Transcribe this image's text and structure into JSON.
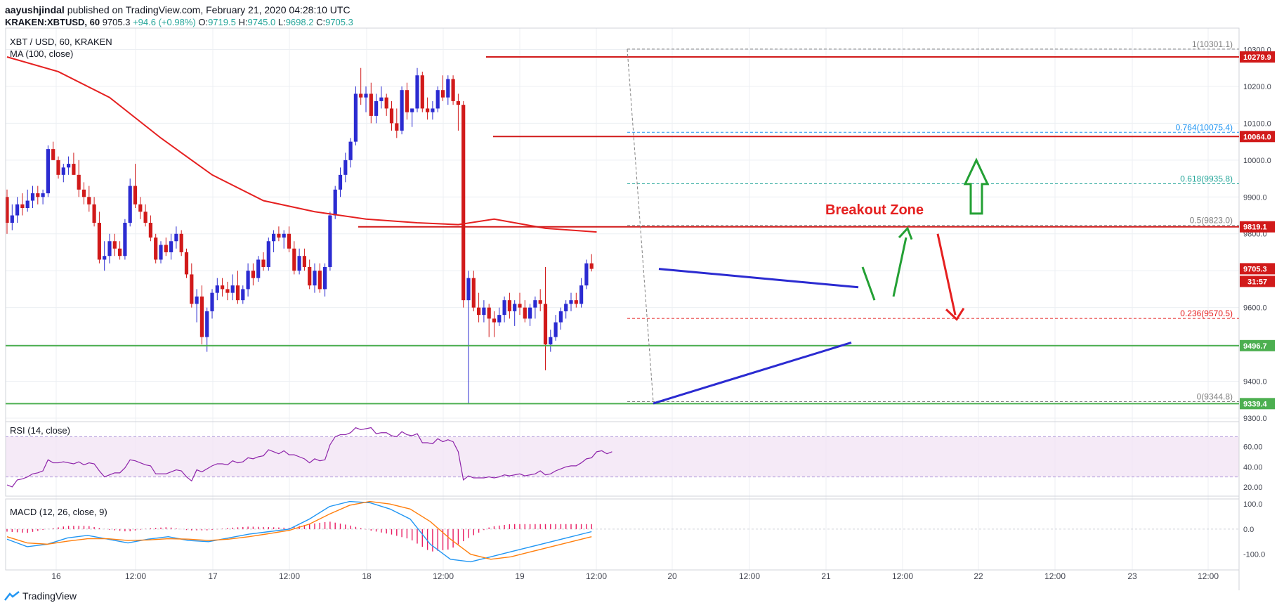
{
  "header": {
    "author": "aayushjindal",
    "published_text": "published on TradingView.com, February 21, 2020 04:28:10 UTC",
    "symbol": "KRAKEN:XBTUSD, 60",
    "last": "9705.3",
    "change": "+94.6 (+0.98%)",
    "open_label": "O:",
    "open": "9719.5",
    "high_label": "H:",
    "high": "9745.0",
    "low_label": "L:",
    "low": "9698.2",
    "close_label": "C:",
    "close": "9705.3"
  },
  "pane_title": "XBT / USD, 60, KRAKEN",
  "ma_label": "MA (100, close)",
  "rsi_label": "RSI (14, close)",
  "macd_label": "MACD (12, 26, close, 9)",
  "annotation": "Breakout Zone",
  "footer": {
    "brand": "TradingView",
    "logo_icon": "tradingview-logo-icon"
  },
  "colors": {
    "up": "#2b2bd1",
    "down": "#d11a1a",
    "ma": "#e52020",
    "support": "#4caf50",
    "trend": "#2b2bd1",
    "rsi": "#8e24aa",
    "macd": "#2196f3",
    "signal": "#ff7f0e",
    "hist": "#e91e63"
  },
  "chart_data": [
    {
      "type": "candlestick",
      "title": "XBT / USD, 60, KRAKEN",
      "ylim": [
        9300,
        10320
      ],
      "y_ticks": [
        "10300.0",
        "10200.0",
        "10100.0",
        "10000.0",
        "9900.0",
        "9800.0",
        "9700.0",
        "9600.0",
        "9500.0",
        "9400.0",
        "9300.0"
      ],
      "x_ticks": [
        "16",
        "12:00",
        "17",
        "12:00",
        "18",
        "12:00",
        "19",
        "12:00",
        "20",
        "12:00",
        "21",
        "12:00",
        "22",
        "12:00",
        "23",
        "12:00"
      ],
      "ohlc": [
        [
          9900,
          9920,
          9800,
          9830
        ],
        [
          9830,
          9880,
          9810,
          9850
        ],
        [
          9850,
          9900,
          9830,
          9880
        ],
        [
          9880,
          9910,
          9850,
          9870
        ],
        [
          9870,
          9920,
          9860,
          9890
        ],
        [
          9890,
          9930,
          9870,
          9910
        ],
        [
          9910,
          9930,
          9880,
          9900
        ],
        [
          9900,
          9920,
          9880,
          9910
        ],
        [
          9910,
          10040,
          9900,
          10030
        ],
        [
          10030,
          10050,
          10000,
          10000
        ],
        [
          10000,
          10010,
          9950,
          9960
        ],
        [
          9960,
          9990,
          9940,
          9980
        ],
        [
          9980,
          10010,
          9960,
          9990
        ],
        [
          9990,
          10020,
          9960,
          9960
        ],
        [
          9960,
          10000,
          9900,
          9920
        ],
        [
          9920,
          9940,
          9880,
          9900
        ],
        [
          9900,
          9930,
          9860,
          9880
        ],
        [
          9880,
          9900,
          9820,
          9830
        ],
        [
          9830,
          9860,
          9720,
          9730
        ],
        [
          9730,
          9780,
          9700,
          9740
        ],
        [
          9740,
          9800,
          9720,
          9780
        ],
        [
          9780,
          9800,
          9740,
          9760
        ],
        [
          9760,
          9780,
          9730,
          9740
        ],
        [
          9740,
          9840,
          9730,
          9830
        ],
        [
          9830,
          9950,
          9820,
          9930
        ],
        [
          9930,
          9990,
          9870,
          9880
        ],
        [
          9880,
          9900,
          9840,
          9860
        ],
        [
          9860,
          9880,
          9820,
          9830
        ],
        [
          9830,
          9850,
          9780,
          9790
        ],
        [
          9790,
          9800,
          9720,
          9730
        ],
        [
          9730,
          9780,
          9720,
          9770
        ],
        [
          9770,
          9790,
          9740,
          9750
        ],
        [
          9750,
          9800,
          9730,
          9780
        ],
        [
          9780,
          9820,
          9760,
          9800
        ],
        [
          9800,
          9810,
          9740,
          9750
        ],
        [
          9750,
          9760,
          9680,
          9690
        ],
        [
          9690,
          9720,
          9600,
          9610
        ],
        [
          9610,
          9650,
          9560,
          9630
        ],
        [
          9630,
          9660,
          9500,
          9520
        ],
        [
          9520,
          9600,
          9480,
          9590
        ],
        [
          9590,
          9650,
          9570,
          9640
        ],
        [
          9640,
          9680,
          9620,
          9660
        ],
        [
          9660,
          9680,
          9630,
          9650
        ],
        [
          9650,
          9670,
          9620,
          9640
        ],
        [
          9640,
          9690,
          9620,
          9660
        ],
        [
          9660,
          9700,
          9610,
          9620
        ],
        [
          9620,
          9660,
          9610,
          9650
        ],
        [
          9650,
          9720,
          9630,
          9700
        ],
        [
          9700,
          9720,
          9660,
          9680
        ],
        [
          9680,
          9740,
          9670,
          9730
        ],
        [
          9730,
          9750,
          9700,
          9710
        ],
        [
          9710,
          9790,
          9700,
          9780
        ],
        [
          9780,
          9810,
          9750,
          9800
        ],
        [
          9800,
          9820,
          9780,
          9790
        ],
        [
          9790,
          9810,
          9760,
          9800
        ],
        [
          9800,
          9820,
          9750,
          9760
        ],
        [
          9760,
          9780,
          9690,
          9700
        ],
        [
          9700,
          9760,
          9690,
          9740
        ],
        [
          9740,
          9760,
          9700,
          9710
        ],
        [
          9710,
          9730,
          9650,
          9660
        ],
        [
          9660,
          9720,
          9640,
          9700
        ],
        [
          9700,
          9720,
          9640,
          9650
        ],
        [
          9650,
          9720,
          9630,
          9710
        ],
        [
          9710,
          9860,
          9700,
          9850
        ],
        [
          9850,
          9930,
          9840,
          9920
        ],
        [
          9920,
          9980,
          9900,
          9960
        ],
        [
          9960,
          10020,
          9940,
          10000
        ],
        [
          10000,
          10060,
          9980,
          10050
        ],
        [
          10050,
          10200,
          10040,
          10180
        ],
        [
          10180,
          10250,
          10150,
          10170
        ],
        [
          10170,
          10200,
          10130,
          10180
        ],
        [
          10180,
          10210,
          10100,
          10120
        ],
        [
          10120,
          10180,
          10100,
          10160
        ],
        [
          10160,
          10200,
          10140,
          10170
        ],
        [
          10170,
          10180,
          10120,
          10140
        ],
        [
          10140,
          10160,
          10080,
          10100
        ],
        [
          10100,
          10140,
          10060,
          10080
        ],
        [
          10080,
          10200,
          10070,
          10190
        ],
        [
          10190,
          10210,
          10110,
          10130
        ],
        [
          10130,
          10140,
          10090,
          10140
        ],
        [
          10140,
          10250,
          10130,
          10230
        ],
        [
          10230,
          10240,
          10130,
          10140
        ],
        [
          10140,
          10170,
          10110,
          10130
        ],
        [
          10130,
          10160,
          10110,
          10140
        ],
        [
          10140,
          10200,
          10130,
          10190
        ],
        [
          10190,
          10230,
          10160,
          10170
        ],
        [
          10170,
          10230,
          10150,
          10220
        ],
        [
          10220,
          10230,
          10150,
          10160
        ],
        [
          10160,
          10180,
          10080,
          10150
        ],
        [
          10150,
          10160,
          9600,
          9620
        ],
        [
          9620,
          9700,
          9340,
          9680
        ],
        [
          9680,
          9700,
          9590,
          9600
        ],
        [
          9600,
          9640,
          9560,
          9580
        ],
        [
          9580,
          9620,
          9560,
          9600
        ],
        [
          9600,
          9610,
          9520,
          9570
        ],
        [
          9570,
          9590,
          9520,
          9560
        ],
        [
          9560,
          9600,
          9550,
          9580
        ],
        [
          9580,
          9630,
          9560,
          9620
        ],
        [
          9620,
          9640,
          9570,
          9590
        ],
        [
          9590,
          9620,
          9550,
          9610
        ],
        [
          9610,
          9640,
          9580,
          9600
        ],
        [
          9600,
          9620,
          9560,
          9570
        ],
        [
          9570,
          9610,
          9550,
          9600
        ],
        [
          9600,
          9630,
          9570,
          9620
        ],
        [
          9620,
          9650,
          9590,
          9610
        ],
        [
          9610,
          9710,
          9430,
          9500
        ],
        [
          9500,
          9540,
          9480,
          9520
        ],
        [
          9520,
          9580,
          9510,
          9560
        ],
        [
          9560,
          9600,
          9540,
          9590
        ],
        [
          9590,
          9620,
          9570,
          9610
        ],
        [
          9610,
          9640,
          9590,
          9620
        ],
        [
          9620,
          9640,
          9600,
          9610
        ],
        [
          9610,
          9680,
          9600,
          9660
        ],
        [
          9660,
          9730,
          9650,
          9720
        ],
        [
          9720,
          9745,
          9698,
          9705
        ]
      ],
      "series": [
        {
          "name": "MA (100, close)",
          "values": [
            [
              0,
              10280
            ],
            [
              10,
              10240
            ],
            [
              20,
              10170
            ],
            [
              30,
              10060
            ],
            [
              40,
              9960
            ],
            [
              50,
              9890
            ],
            [
              60,
              9860
            ],
            [
              70,
              9840
            ],
            [
              80,
              9830
            ],
            [
              88,
              9825
            ],
            [
              95,
              9840
            ],
            [
              105,
              9815
            ],
            [
              115,
              9805
            ]
          ]
        },
        {
          "name": "Breakout Zone levels",
          "levels": [
            10279.9,
            10064.0,
            9819.1,
            9496.7,
            9339.4
          ]
        }
      ],
      "fibonacci": [
        {
          "ratio": "1",
          "price": "10301.1"
        },
        {
          "ratio": "0.764",
          "price": "10075.4"
        },
        {
          "ratio": "0.618",
          "price": "9935.8"
        },
        {
          "ratio": "0.5",
          "price": "9823.0"
        },
        {
          "ratio": "0.236",
          "price": "9570.5"
        },
        {
          "ratio": "0",
          "price": "9344.8"
        }
      ],
      "price_labels": [
        "10279.9",
        "10064.0",
        "9819.1",
        "9705.3",
        "31:57",
        "9496.7",
        "9339.4"
      ]
    },
    {
      "type": "line",
      "title": "RSI (14, close)",
      "ylim": [
        15,
        85
      ],
      "y_ticks": [
        "60.00",
        "40.00",
        "20.00"
      ],
      "bands": [
        70,
        30
      ],
      "values": [
        22,
        20,
        27,
        28,
        30,
        33,
        34,
        36,
        47,
        44,
        44,
        45,
        44,
        43,
        45,
        42,
        44,
        43,
        36,
        30,
        32,
        34,
        34,
        39,
        47,
        46,
        44,
        42,
        41,
        33,
        33,
        33,
        35,
        37,
        36,
        30,
        26,
        37,
        35,
        38,
        41,
        43,
        43,
        42,
        46,
        44,
        45,
        49,
        48,
        50,
        51,
        57,
        55,
        53,
        56,
        52,
        52,
        50,
        48,
        44,
        48,
        46,
        47,
        62,
        70,
        72,
        72,
        74,
        79,
        77,
        78,
        79,
        73,
        74,
        74,
        71,
        70,
        75,
        72,
        71,
        73,
        64,
        64,
        63,
        68,
        65,
        67,
        65,
        55,
        27,
        31,
        29,
        29,
        29,
        30,
        29,
        30,
        32,
        31,
        32,
        33,
        31,
        32,
        33,
        36,
        32,
        33,
        36,
        38,
        40,
        41,
        41,
        44,
        48,
        49,
        55,
        56,
        53,
        55
      ]
    },
    {
      "type": "line",
      "title": "MACD (12, 26, close, 9)",
      "ylim": [
        -140,
        120
      ],
      "y_ticks": [
        "100.0",
        "0.0",
        "-100.0"
      ],
      "series": [
        {
          "name": "MACD",
          "values": [
            -40,
            -70,
            -60,
            -35,
            -25,
            -40,
            -55,
            -40,
            -30,
            -45,
            -50,
            -35,
            -20,
            -10,
            0,
            40,
            90,
            110,
            105,
            80,
            40,
            -60,
            -120,
            -130,
            -110,
            -90,
            -70,
            -50,
            -30,
            -10
          ]
        },
        {
          "name": "Signal",
          "values": [
            -30,
            -55,
            -60,
            -48,
            -38,
            -38,
            -45,
            -43,
            -38,
            -40,
            -45,
            -40,
            -30,
            -18,
            -5,
            20,
            60,
            95,
            110,
            100,
            80,
            30,
            -40,
            -100,
            -120,
            -110,
            -90,
            -70,
            -50,
            -30
          ]
        }
      ]
    }
  ]
}
